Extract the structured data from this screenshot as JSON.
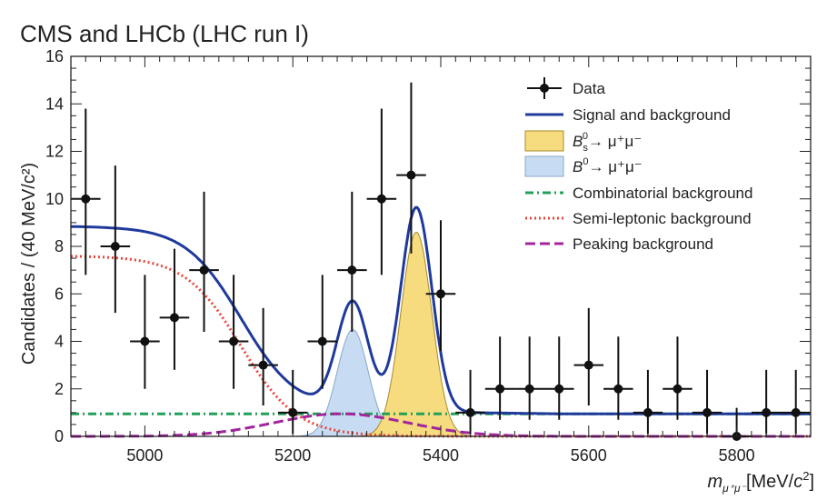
{
  "chart_data": {
    "type": "scatter",
    "title": "CMS and LHCb (LHC run I)",
    "xlabel": "m",
    "xlabel_sub": "μ⁺μ⁻",
    "xlabel_unit": "[MeV/",
    "xlabel_unit_c": "c",
    "xlabel_unit_sup": "2",
    "xlabel_unit_end": "]",
    "ylabel": "Candidates / (40 MeV/c²)",
    "xlim": [
      4900,
      5900
    ],
    "ylim": [
      0,
      16
    ],
    "x_ticks": [
      5000,
      5200,
      5400,
      5600,
      5800
    ],
    "y_ticks": [
      0,
      2,
      4,
      6,
      8,
      10,
      12,
      14,
      16
    ],
    "grid": false,
    "legend_position": "top-right",
    "legend": [
      {
        "key": "data",
        "label": "Data"
      },
      {
        "key": "total",
        "label": "Signal and background"
      },
      {
        "key": "bs",
        "label": "B",
        "sub": "s",
        "sup": "0",
        "arrow": "→  μ⁺μ⁻"
      },
      {
        "key": "b0",
        "label": "B",
        "sup": "0",
        "arrow": "→  μ⁺μ⁻"
      },
      {
        "key": "comb",
        "label": "Combinatorial background"
      },
      {
        "key": "semi",
        "label": "Semi-leptonic background"
      },
      {
        "key": "peak",
        "label": "Peaking background"
      }
    ],
    "data_points": {
      "name": "Data",
      "bin_half_width": 20,
      "x": [
        4920,
        4960,
        5000,
        5040,
        5080,
        5120,
        5160,
        5200,
        5240,
        5280,
        5320,
        5360,
        5400,
        5440,
        5480,
        5520,
        5560,
        5600,
        5640,
        5680,
        5720,
        5760,
        5800,
        5840,
        5880
      ],
      "y": [
        10,
        8,
        4,
        5,
        7,
        4,
        3,
        1,
        4,
        7,
        10,
        11,
        6,
        1,
        2,
        2,
        2,
        3,
        2,
        1,
        2,
        1,
        0,
        1,
        1
      ],
      "err_low": [
        3.2,
        2.8,
        2.0,
        2.2,
        2.6,
        2.0,
        1.7,
        0.9,
        2.0,
        2.6,
        3.2,
        3.3,
        2.4,
        0.9,
        1.3,
        1.3,
        1.3,
        1.7,
        1.3,
        0.9,
        1.3,
        0.9,
        0,
        0.9,
        0.9
      ],
      "err_high": [
        3.8,
        3.4,
        2.8,
        2.9,
        3.3,
        2.8,
        2.4,
        1.8,
        2.8,
        3.3,
        3.8,
        3.9,
        3.1,
        1.8,
        2.2,
        2.2,
        2.2,
        2.4,
        2.2,
        1.8,
        2.2,
        1.8,
        1.2,
        1.8,
        1.8
      ]
    },
    "colors": {
      "data": "#111111",
      "total": "#1f3a9c",
      "bs_fill": "#f6dc7e",
      "b0_fill": "#c7dcf2",
      "comb": "#22a05a",
      "semi": "#e8463c",
      "peak": "#a3259e"
    }
  }
}
